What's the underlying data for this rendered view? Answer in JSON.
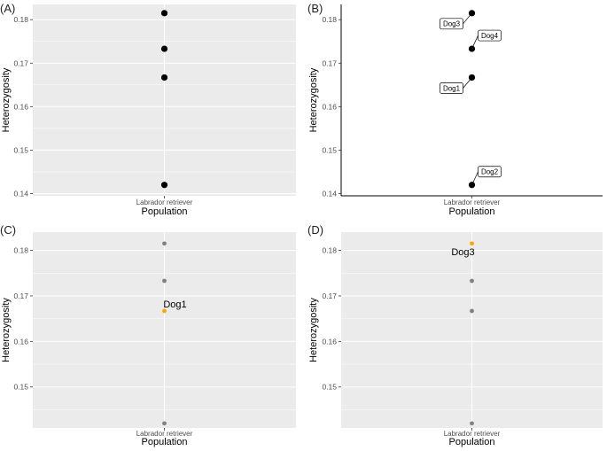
{
  "chart_data": [
    {
      "panel": "(A)",
      "type": "scatter",
      "style": "grey-background",
      "xlabel": "Population",
      "ylabel": "Heterozygosity",
      "categories": [
        "Labrador retriever"
      ],
      "yticks": [
        "0.14",
        "0.15",
        "0.16",
        "0.17",
        "0.18"
      ],
      "ylim": [
        0.1395,
        0.1835
      ],
      "points": [
        {
          "x": "Labrador retriever",
          "y": 0.1815,
          "color": "#000000"
        },
        {
          "x": "Labrador retriever",
          "y": 0.1733,
          "color": "#000000"
        },
        {
          "x": "Labrador retriever",
          "y": 0.1667,
          "color": "#000000"
        },
        {
          "x": "Labrador retriever",
          "y": 0.142,
          "color": "#000000"
        }
      ]
    },
    {
      "panel": "(B)",
      "type": "scatter",
      "style": "classic",
      "xlabel": "Population",
      "ylabel": "Heterozygosity",
      "categories": [
        "Labrador retriever"
      ],
      "yticks": [
        "0.14",
        "0.15",
        "0.16",
        "0.17",
        "0.18"
      ],
      "ylim": [
        0.1395,
        0.1835
      ],
      "points": [
        {
          "x": "Labrador retriever",
          "y": 0.1815,
          "color": "#000000",
          "label": "Dog3",
          "label_side": "left"
        },
        {
          "x": "Labrador retriever",
          "y": 0.1733,
          "color": "#000000",
          "label": "Dog4",
          "label_side": "right"
        },
        {
          "x": "Labrador retriever",
          "y": 0.1667,
          "color": "#000000",
          "label": "Dog1",
          "label_side": "left"
        },
        {
          "x": "Labrador retriever",
          "y": 0.142,
          "color": "#000000",
          "label": "Dog2",
          "label_side": "right"
        }
      ]
    },
    {
      "panel": "(C)",
      "type": "scatter",
      "style": "grey-background",
      "xlabel": "Population",
      "ylabel": "Heterozygosity",
      "categories": [
        "Labrador retriever"
      ],
      "yticks": [
        "0.15",
        "0.16",
        "0.17",
        "0.18"
      ],
      "ylim": [
        0.141,
        0.184
      ],
      "highlight_label": "Dog1",
      "points": [
        {
          "x": "Labrador retriever",
          "y": 0.1815,
          "color": "#808080"
        },
        {
          "x": "Labrador retriever",
          "y": 0.1733,
          "color": "#808080"
        },
        {
          "x": "Labrador retriever",
          "y": 0.1667,
          "color": "#FFA500",
          "highlight": true
        },
        {
          "x": "Labrador retriever",
          "y": 0.142,
          "color": "#808080"
        }
      ]
    },
    {
      "panel": "(D)",
      "type": "scatter",
      "style": "grey-background",
      "xlabel": "Population",
      "ylabel": "Heterozygosity",
      "categories": [
        "Labrador retriever"
      ],
      "yticks": [
        "0.15",
        "0.16",
        "0.17",
        "0.18"
      ],
      "ylim": [
        0.141,
        0.184
      ],
      "highlight_label": "Dog3",
      "points": [
        {
          "x": "Labrador retriever",
          "y": 0.1815,
          "color": "#FFA500",
          "highlight": true
        },
        {
          "x": "Labrador retriever",
          "y": 0.1733,
          "color": "#808080"
        },
        {
          "x": "Labrador retriever",
          "y": 0.1667,
          "color": "#808080"
        },
        {
          "x": "Labrador retriever",
          "y": 0.142,
          "color": "#808080"
        }
      ]
    }
  ]
}
